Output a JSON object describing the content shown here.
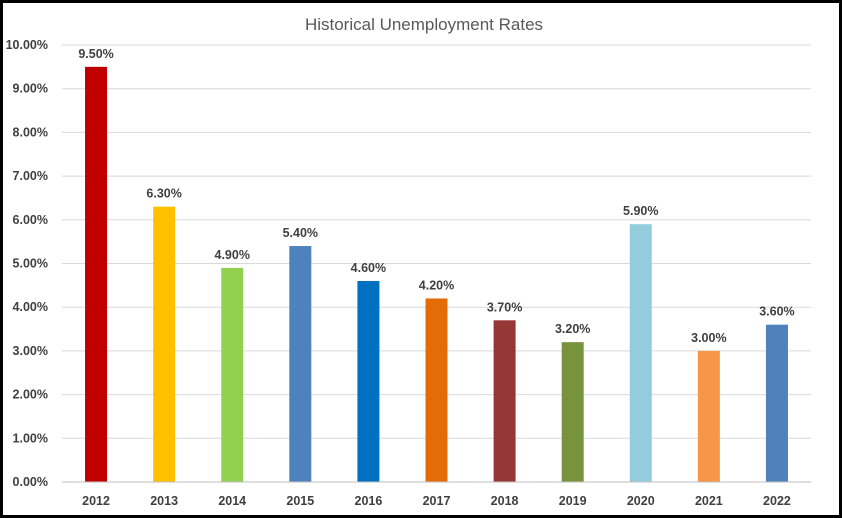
{
  "chart_data": {
    "type": "bar",
    "title": "Historical Unemployment Rates",
    "xlabel": "",
    "ylabel": "",
    "categories": [
      "2012",
      "2013",
      "2014",
      "2015",
      "2016",
      "2017",
      "2018",
      "2019",
      "2020",
      "2021",
      "2022"
    ],
    "values": [
      9.5,
      6.3,
      4.9,
      5.4,
      4.6,
      4.2,
      3.7,
      3.2,
      5.9,
      3.0,
      3.6
    ],
    "data_labels": [
      "9.50%",
      "6.30%",
      "4.90%",
      "5.40%",
      "4.60%",
      "4.20%",
      "3.70%",
      "3.20%",
      "5.90%",
      "3.00%",
      "3.60%"
    ],
    "colors": [
      "#C00000",
      "#FFC000",
      "#92D050",
      "#4F81BD",
      "#0070C0",
      "#E36C09",
      "#953735",
      "#77933C",
      "#93CDDD",
      "#F79646",
      "#4F81BD"
    ],
    "ylim": [
      0,
      10
    ],
    "yticks": [
      0,
      1,
      2,
      3,
      4,
      5,
      6,
      7,
      8,
      9,
      10
    ],
    "ytick_labels": [
      "0.00%",
      "1.00%",
      "2.00%",
      "3.00%",
      "4.00%",
      "5.00%",
      "6.00%",
      "7.00%",
      "8.00%",
      "9.00%",
      "10.00%"
    ],
    "grid": true,
    "legend": "none"
  }
}
